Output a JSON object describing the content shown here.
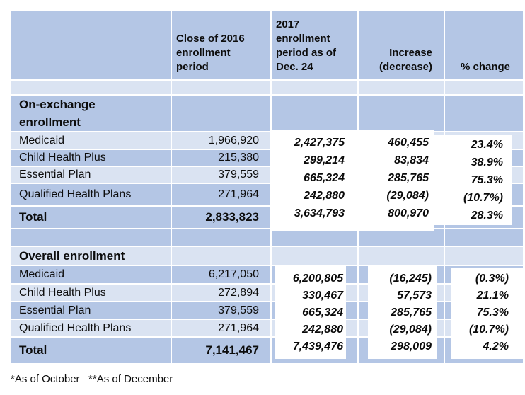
{
  "chart_data": {
    "type": "table",
    "columns": {
      "label": "",
      "close2016": "Close of 2016 enrollment period",
      "period2017": "2017 enrollment period as of Dec. 24",
      "increase": "Increase (decrease)",
      "pct": "% change"
    },
    "on_exchange": {
      "title": "On-exchange enrollment",
      "rows": [
        {
          "label": "Medicaid",
          "close2016": "1,966,920",
          "y2017": "2,427,375",
          "increase": "460,455",
          "pct": "23.4%"
        },
        {
          "label": "Child Health Plus",
          "close2016": "215,380",
          "y2017": "299,214",
          "increase": "83,834",
          "pct": "38.9%"
        },
        {
          "label": "Essential Plan",
          "close2016": "379,559",
          "y2017": "665,324",
          "increase": "285,765",
          "pct": "75.3%"
        },
        {
          "label": "Qualified Health Plans",
          "close2016": "271,964",
          "y2017": "242,880",
          "increase": "(29,084)",
          "pct": "(10.7%)"
        }
      ],
      "total": {
        "label": "Total",
        "close2016": "2,833,823",
        "y2017": "3,634,793",
        "increase": "800,970",
        "pct": "28.3%"
      }
    },
    "overall": {
      "title": "Overall enrollment",
      "rows": [
        {
          "label": "Medicaid",
          "close2016": "6,217,050",
          "y2017": "6,200,805",
          "increase": "(16,245)",
          "pct": "(0.3%)"
        },
        {
          "label": "Child Health Plus",
          "close2016": "272,894",
          "y2017": "330,467",
          "increase": "57,573",
          "pct": "21.1%"
        },
        {
          "label": "Essential Plan",
          "close2016": "379,559",
          "y2017": "665,324",
          "increase": "285,765",
          "pct": "75.3%"
        },
        {
          "label": "Qualified Health Plans",
          "close2016": "271,964",
          "y2017": "242,880",
          "increase": "(29,084)",
          "pct": "(10.7%)"
        }
      ],
      "total": {
        "label": "Total",
        "close2016": "7,141,467",
        "y2017": "7,439,476",
        "increase": "298,009",
        "pct": "4.2%"
      }
    }
  },
  "footnote": "*As of October   **As of December",
  "colors": {
    "band_medium": "#b4c6e5",
    "band_light": "#dae3f2",
    "overlay_bg": "#ffffff",
    "text": "#0d0d0d",
    "gridline": "#ffffff"
  }
}
